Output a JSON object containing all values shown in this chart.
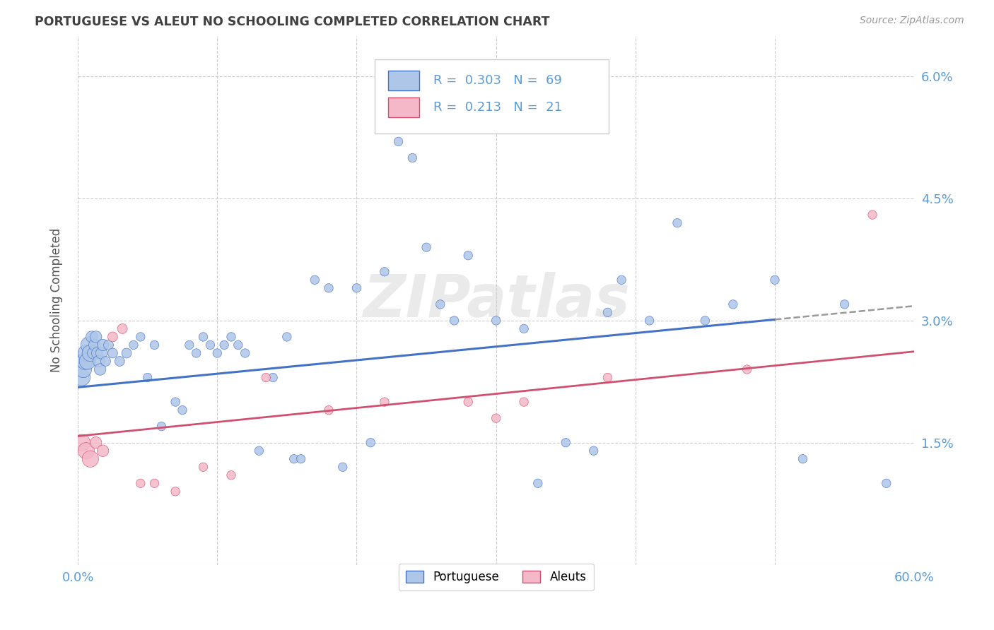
{
  "title": "PORTUGUESE VS ALEUT NO SCHOOLING COMPLETED CORRELATION CHART",
  "source": "Source: ZipAtlas.com",
  "ylabel": "No Schooling Completed",
  "xlim": [
    0.0,
    60.0
  ],
  "ylim": [
    0.0,
    6.5
  ],
  "yticks": [
    0.0,
    1.5,
    3.0,
    4.5,
    6.0
  ],
  "xticks": [
    0.0,
    10.0,
    20.0,
    30.0,
    40.0,
    50.0,
    60.0
  ],
  "r_portuguese": 0.303,
  "n_portuguese": 69,
  "r_aleut": 0.213,
  "n_aleut": 21,
  "color_portuguese": "#aec6e8",
  "color_aleut": "#f4b8c8",
  "color_line_portuguese": "#4472c4",
  "color_line_aleut": "#d05070",
  "color_ticks": "#5b9bd5",
  "title_color": "#404040",
  "background_color": "#ffffff",
  "grid_color": "#cccccc",
  "watermark": "ZIPatlas",
  "port_line_start_y": 2.18,
  "port_line_end_y": 3.18,
  "aleut_line_start_y": 1.58,
  "aleut_line_end_y": 2.62,
  "port_x": [
    0.3,
    0.4,
    0.5,
    0.6,
    0.7,
    0.8,
    0.9,
    1.0,
    1.1,
    1.2,
    1.3,
    1.4,
    1.5,
    1.6,
    1.7,
    1.8,
    2.0,
    2.2,
    2.5,
    3.0,
    3.5,
    4.0,
    4.5,
    5.0,
    5.5,
    6.0,
    7.0,
    7.5,
    8.0,
    8.5,
    9.0,
    9.5,
    10.0,
    10.5,
    11.0,
    11.5,
    12.0,
    13.0,
    14.0,
    15.0,
    15.5,
    16.0,
    17.0,
    18.0,
    19.0,
    20.0,
    21.0,
    22.0,
    23.0,
    24.0,
    25.0,
    26.0,
    27.0,
    28.0,
    30.0,
    32.0,
    33.0,
    35.0,
    37.0,
    38.0,
    39.0,
    41.0,
    43.0,
    45.0,
    47.0,
    50.0,
    52.0,
    55.0,
    58.0
  ],
  "port_y": [
    2.3,
    2.4,
    2.5,
    2.6,
    2.5,
    2.7,
    2.6,
    2.8,
    2.6,
    2.7,
    2.8,
    2.6,
    2.5,
    2.4,
    2.6,
    2.7,
    2.5,
    2.7,
    2.6,
    2.5,
    2.6,
    2.7,
    2.8,
    2.3,
    2.7,
    1.7,
    2.0,
    1.9,
    2.7,
    2.6,
    2.8,
    2.7,
    2.6,
    2.7,
    2.8,
    2.7,
    2.6,
    1.4,
    2.3,
    2.8,
    1.3,
    1.3,
    3.5,
    3.4,
    1.2,
    3.4,
    1.5,
    3.6,
    5.2,
    5.0,
    3.9,
    3.2,
    3.0,
    3.8,
    3.0,
    2.9,
    1.0,
    1.5,
    1.4,
    3.1,
    3.5,
    3.0,
    4.2,
    3.0,
    3.2,
    3.5,
    1.3,
    3.2,
    1.0
  ],
  "port_sizes": [
    80,
    80,
    80,
    80,
    80,
    80,
    80,
    80,
    80,
    80,
    80,
    80,
    80,
    80,
    80,
    80,
    80,
    80,
    80,
    80,
    80,
    80,
    80,
    80,
    80,
    80,
    80,
    80,
    80,
    80,
    80,
    80,
    80,
    80,
    80,
    80,
    80,
    80,
    80,
    80,
    80,
    80,
    80,
    80,
    80,
    80,
    80,
    80,
    80,
    80,
    80,
    80,
    80,
    80,
    80,
    80,
    80,
    80,
    80,
    80,
    80,
    80,
    80,
    80,
    80,
    80,
    80,
    80,
    80
  ],
  "aleut_x": [
    0.3,
    0.6,
    0.9,
    1.3,
    1.8,
    2.5,
    3.2,
    4.5,
    5.5,
    7.0,
    9.0,
    11.0,
    13.5,
    18.0,
    22.0,
    28.0,
    30.0,
    32.0,
    38.0,
    48.0,
    57.0
  ],
  "aleut_y": [
    1.5,
    1.4,
    1.3,
    1.5,
    1.4,
    2.8,
    2.9,
    1.0,
    1.0,
    0.9,
    1.2,
    1.1,
    2.3,
    1.9,
    2.0,
    2.0,
    1.8,
    2.0,
    2.3,
    2.4,
    4.3
  ],
  "aleut_sizes": [
    80,
    80,
    80,
    80,
    80,
    80,
    80,
    80,
    80,
    80,
    80,
    80,
    80,
    80,
    80,
    80,
    80,
    80,
    80,
    80,
    80
  ]
}
